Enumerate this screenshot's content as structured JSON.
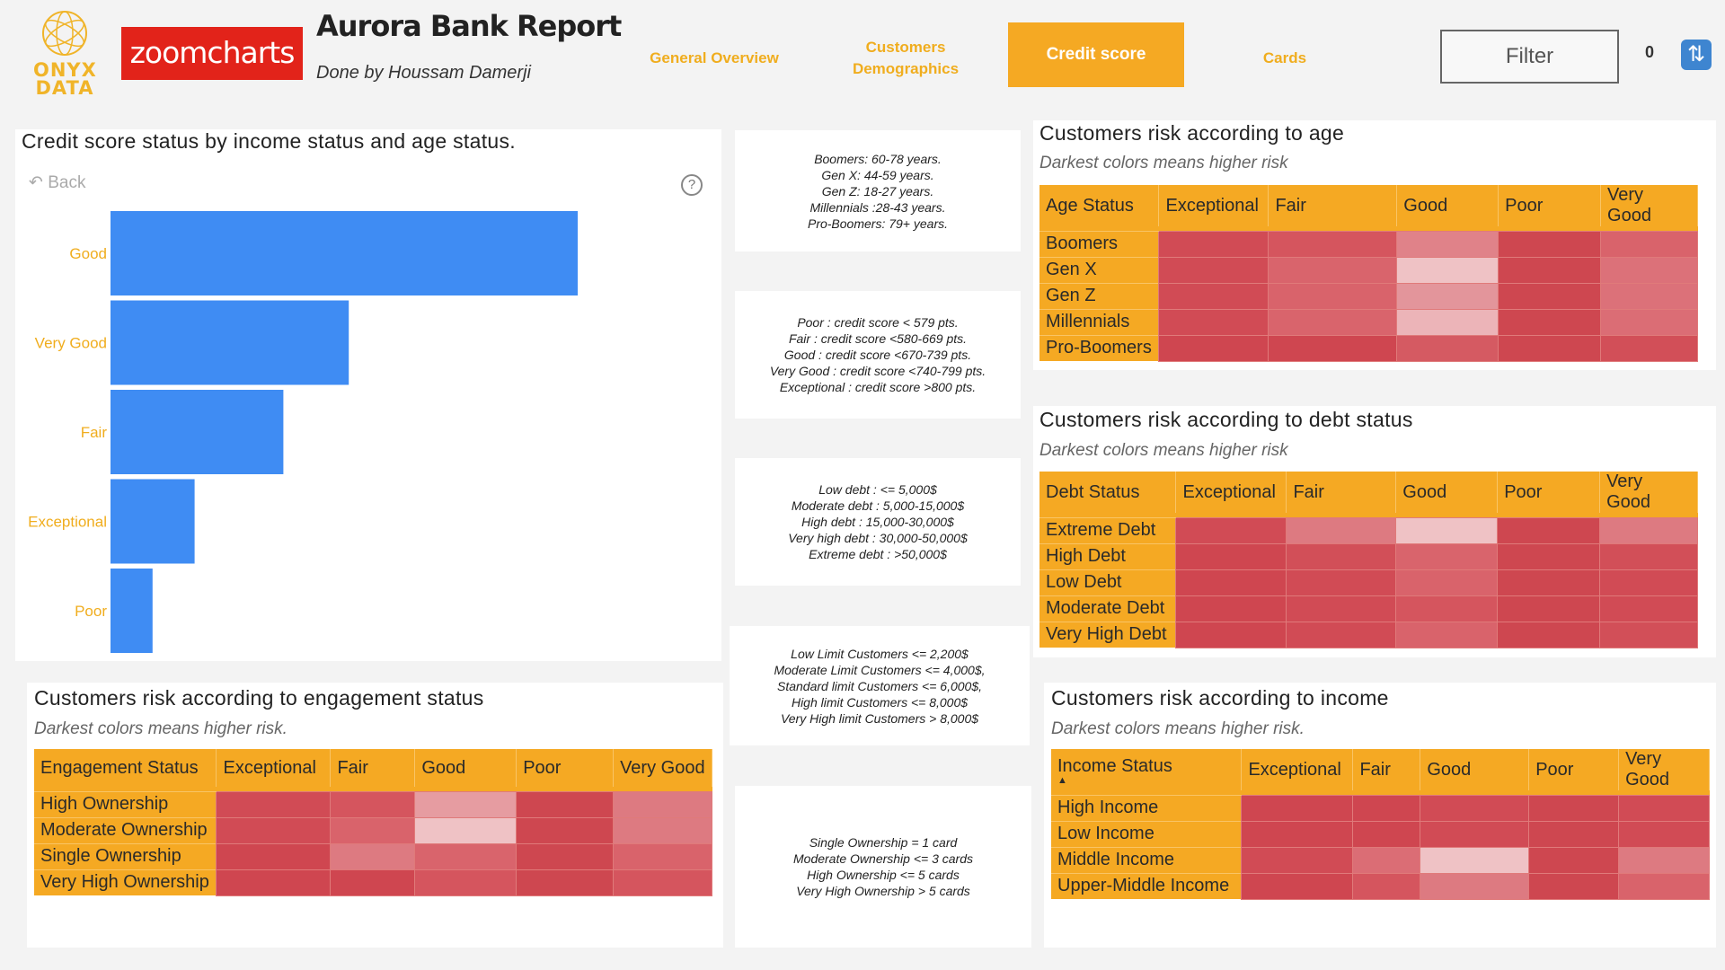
{
  "header": {
    "onyx_logo_text": "ONYX DATA",
    "zoomcharts_logo_text": "zoomcharts",
    "title": "Aurora Bank Report",
    "author": "Done by Houssam Damerji"
  },
  "nav": {
    "general": "General Overview",
    "demographics": "Customers Demographics",
    "credit": "Credit score",
    "cards": "Cards"
  },
  "filter": {
    "label": "Filter",
    "count": "0"
  },
  "bar_panel": {
    "title": "Credit score status by income status and age status.",
    "back_label": "Back",
    "help": "?"
  },
  "chart_data": {
    "type": "bar",
    "orientation": "horizontal",
    "title": "Credit score status by income status and age status.",
    "categories": [
      "Good",
      "Very Good",
      "Fair",
      "Exceptional",
      "Poor"
    ],
    "values": [
      100,
      51,
      37,
      18,
      9
    ],
    "bar_color": "#3f8cf3",
    "label_color": "#f0ad1e"
  },
  "info": {
    "age": [
      "Boomers: 60-78 years.",
      "Gen X: 44-59 years.",
      "Gen Z: 18-27 years.",
      "Millennials :28-43 years.",
      "Pro-Boomers: 79+ years."
    ],
    "credit": [
      "Poor : credit score < 579 pts.",
      "Fair :  credit score <580-669 pts.",
      "Good :  credit score <670-739 pts.",
      "Very Good : credit score <740-799 pts.",
      "Exceptional : credit score >800 pts."
    ],
    "debt": [
      "Low debt : <= 5,000$",
      "Moderate debt : 5,000-15,000$",
      "High debt : 15,000-30,000$",
      "Very high debt : 30,000-50,000$",
      "Extreme debt : >50,000$"
    ],
    "limit": [
      "Low Limit Customers <= 2,200$",
      "Moderate Limit Customers <= 4,000$,",
      "Standard limit Customers <= 6,000$,",
      "High limit Customers <= 8,000$",
      "Very High limit Customers > 8,000$"
    ],
    "ownership": [
      "Single Ownership = 1 card",
      "Moderate Ownership <= 3 cards",
      "High Ownership <= 5 cards",
      "Very High Ownership > 5 cards"
    ]
  },
  "heatmaps": {
    "age": {
      "title": "Customers risk according to age",
      "subtitle": "Darkest colors means higher risk",
      "columns": [
        "Age Status",
        "Exceptional",
        "Fair",
        "Good",
        "Poor",
        "Very Good"
      ],
      "rows": [
        {
          "label": "Boomers",
          "colors": [
            "#d14b55",
            "#d5555e",
            "#e08289",
            "#ce4750",
            "#d9636b"
          ]
        },
        {
          "label": "Gen X",
          "colors": [
            "#d14b55",
            "#d9646c",
            "#efc2c5",
            "#ce4750",
            "#dc7179"
          ]
        },
        {
          "label": "Gen Z",
          "colors": [
            "#d14b55",
            "#d9636b",
            "#e3959b",
            "#ce4750",
            "#dc7179"
          ]
        },
        {
          "label": "Millennials",
          "colors": [
            "#d14b55",
            "#d9646c",
            "#ecb4b8",
            "#ce4750",
            "#db6d75"
          ]
        },
        {
          "label": "Pro-Boomers",
          "colors": [
            "#cf4650",
            "#cf4650",
            "#d55a62",
            "#ce4750",
            "#d24f58"
          ]
        }
      ]
    },
    "debt": {
      "title": "Customers risk according to debt status",
      "subtitle": "Darkest colors means higher risk",
      "columns": [
        "Debt Status",
        "Exceptional",
        "Fair",
        "Good",
        "Poor",
        "Very Good"
      ],
      "rows": [
        {
          "label": "Extreme Debt",
          "colors": [
            "#d14b55",
            "#dd7a81",
            "#efc2c5",
            "#ce4750",
            "#dd7a81"
          ]
        },
        {
          "label": "High Debt",
          "colors": [
            "#cf4650",
            "#d24f58",
            "#d9646c",
            "#ce4750",
            "#d24f58"
          ]
        },
        {
          "label": "Low Debt",
          "colors": [
            "#cf4650",
            "#d14b55",
            "#d9636b",
            "#ce4750",
            "#d14b55"
          ]
        },
        {
          "label": "Moderate Debt",
          "colors": [
            "#cf4650",
            "#d14b55",
            "#d5555e",
            "#ce4750",
            "#d14b55"
          ]
        },
        {
          "label": "Very High Debt",
          "colors": [
            "#cf4650",
            "#d14b55",
            "#d9636b",
            "#ce4750",
            "#d24f58"
          ]
        }
      ]
    },
    "engagement": {
      "title": "Customers risk according to engagement status",
      "subtitle": "Darkest colors means higher risk.",
      "columns": [
        "Engagement Status",
        "Exceptional",
        "Fair",
        "Good",
        "Poor",
        "Very Good"
      ],
      "rows": [
        {
          "label": "High Ownership",
          "colors": [
            "#d14b55",
            "#d5555e",
            "#e69ca1",
            "#ce4750",
            "#dd7a81"
          ]
        },
        {
          "label": "Moderate Ownership",
          "colors": [
            "#d14b55",
            "#d9636b",
            "#efc2c5",
            "#ce4750",
            "#dd7a81"
          ]
        },
        {
          "label": "Single Ownership",
          "colors": [
            "#cf4650",
            "#dd7a81",
            "#d9646c",
            "#ce4750",
            "#d9636b"
          ]
        },
        {
          "label": "Very High Ownership",
          "colors": [
            "#cf4650",
            "#cf4650",
            "#d5555e",
            "#ce4750",
            "#d5555e"
          ]
        }
      ]
    },
    "income": {
      "title": "Customers risk according to income",
      "subtitle": "Darkest colors means higher risk.",
      "columns": [
        "Income Status",
        "Exceptional",
        "Fair",
        "Good",
        "Poor",
        "Very Good"
      ],
      "rows": [
        {
          "label": "High Income",
          "colors": [
            "#cf4650",
            "#cf4650",
            "#d14b55",
            "#ce4750",
            "#d14b55"
          ]
        },
        {
          "label": "Low Income",
          "colors": [
            "#cf4650",
            "#cf4650",
            "#d14b55",
            "#ce4750",
            "#d14b55"
          ]
        },
        {
          "label": "Middle Income",
          "colors": [
            "#d14b55",
            "#db6d75",
            "#efc2c5",
            "#ce4750",
            "#dd7a81"
          ]
        },
        {
          "label": "Upper-Middle Income",
          "colors": [
            "#cf4650",
            "#d5555e",
            "#dd7a81",
            "#ce4750",
            "#d9636b"
          ]
        }
      ]
    }
  }
}
